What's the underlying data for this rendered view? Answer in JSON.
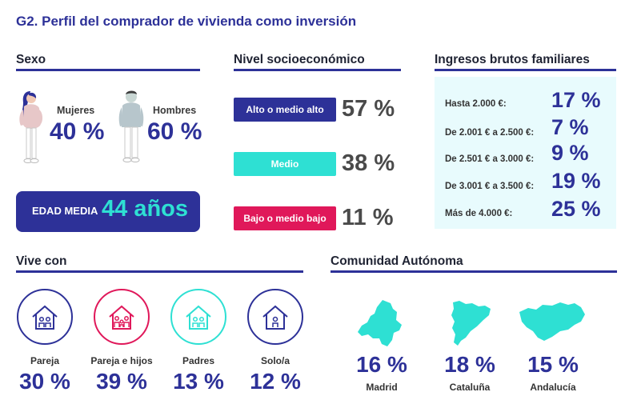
{
  "title": "G2. Perfil del comprador de vivienda como inversión",
  "colors": {
    "primary": "#2d3198",
    "teal": "#2ee0d3",
    "pink": "#e0185a",
    "panel": "#e8fbfd"
  },
  "sexo": {
    "heading": "Sexo",
    "mujeres": {
      "label": "Mujeres",
      "pct": "40 %"
    },
    "hombres": {
      "label": "Hombres",
      "pct": "60 %"
    },
    "edad": {
      "label": "EDAD MEDIA",
      "value": "44 años"
    }
  },
  "nivel": {
    "heading": "Nivel socioeconómico",
    "items": [
      {
        "label": "Alto o medio alto",
        "pct": "57 %",
        "color": "#2d3198"
      },
      {
        "label": "Medio",
        "pct": "38 %",
        "color": "#2ee0d3"
      },
      {
        "label": "Bajo o medio bajo",
        "pct": "11 %",
        "color": "#e0185a"
      }
    ]
  },
  "ingresos": {
    "heading": "Ingresos brutos familiares",
    "items": [
      {
        "label": "Hasta 2.000 €:",
        "pct": "17 %"
      },
      {
        "label": "De 2.001 € a 2.500 €:",
        "pct": "7 %"
      },
      {
        "label": "De 2.501 € a 3.000 €:",
        "pct": "9 %"
      },
      {
        "label": "De 3.001 € a 3.500 €:",
        "pct": "19 %"
      },
      {
        "label": "Más de 4.000 €:",
        "pct": "25 %"
      }
    ]
  },
  "vive_con": {
    "heading": "Vive con",
    "items": [
      {
        "label": "Pareja",
        "pct": "30 %",
        "color": "#2d3198"
      },
      {
        "label": "Pareja e hijos",
        "pct": "39 %",
        "color": "#e0185a"
      },
      {
        "label": "Padres",
        "pct": "13 %",
        "color": "#2ee0d3"
      },
      {
        "label": "Solo/a",
        "pct": "12 %",
        "color": "#2d3198"
      }
    ]
  },
  "comunidad": {
    "heading": "Comunidad Autónoma",
    "items": [
      {
        "label": "Madrid",
        "pct": "16 %"
      },
      {
        "label": "Cataluña",
        "pct": "18 %"
      },
      {
        "label": "Andalucía",
        "pct": "15 %"
      }
    ]
  },
  "chart_data": [
    {
      "type": "table",
      "title": "Sexo",
      "categories": [
        "Mujeres",
        "Hombres"
      ],
      "values": [
        40,
        60
      ],
      "unit": "%"
    },
    {
      "type": "table",
      "title": "Edad media",
      "values": [
        44
      ],
      "unit": "años"
    },
    {
      "type": "bar",
      "title": "Nivel socioeconómico",
      "categories": [
        "Alto o medio alto",
        "Medio",
        "Bajo o medio bajo"
      ],
      "values": [
        57,
        38,
        11
      ],
      "unit": "%"
    },
    {
      "type": "table",
      "title": "Ingresos brutos familiares",
      "categories": [
        "Hasta 2.000 €",
        "De 2.001 € a 2.500 €",
        "De 2.501 € a 3.000 €",
        "De 3.001 € a 3.500 €",
        "Más de 4.000 €"
      ],
      "values": [
        17,
        7,
        9,
        19,
        25
      ],
      "unit": "%"
    },
    {
      "type": "table",
      "title": "Vive con",
      "categories": [
        "Pareja",
        "Pareja e hijos",
        "Padres",
        "Solo/a"
      ],
      "values": [
        30,
        39,
        13,
        12
      ],
      "unit": "%"
    },
    {
      "type": "table",
      "title": "Comunidad Autónoma",
      "categories": [
        "Madrid",
        "Cataluña",
        "Andalucía"
      ],
      "values": [
        16,
        18,
        15
      ],
      "unit": "%"
    }
  ]
}
